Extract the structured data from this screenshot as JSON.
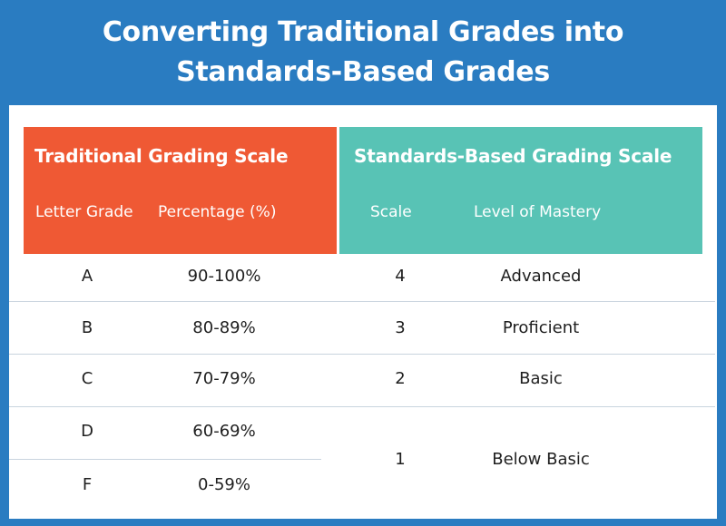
{
  "title": {
    "line1": "Converting Traditional Grades into",
    "line2": "Standards-Based Grades"
  },
  "traditional": {
    "heading": "Traditional Grading Scale",
    "col_letter": "Letter Grade",
    "col_percent": "Percentage (%)",
    "rows": [
      {
        "letter": "A",
        "percent": "90-100%"
      },
      {
        "letter": "B",
        "percent": "80-89%"
      },
      {
        "letter": "C",
        "percent": "70-79%"
      },
      {
        "letter": "D",
        "percent": "60-69%"
      },
      {
        "letter": "F",
        "percent": "0-59%"
      }
    ]
  },
  "standards": {
    "heading": "Standards-Based Grading Scale",
    "col_scale": "Scale",
    "col_mastery": "Level of Mastery",
    "rows": [
      {
        "scale": "4",
        "mastery": "Advanced"
      },
      {
        "scale": "3",
        "mastery": "Proficient"
      },
      {
        "scale": "2",
        "mastery": "Basic"
      },
      {
        "scale": "1",
        "mastery": "Below Basic"
      }
    ]
  },
  "colors": {
    "background": "#2a7cc1",
    "traditional_header": "#ef5934",
    "standards_header": "#58c3b5"
  }
}
